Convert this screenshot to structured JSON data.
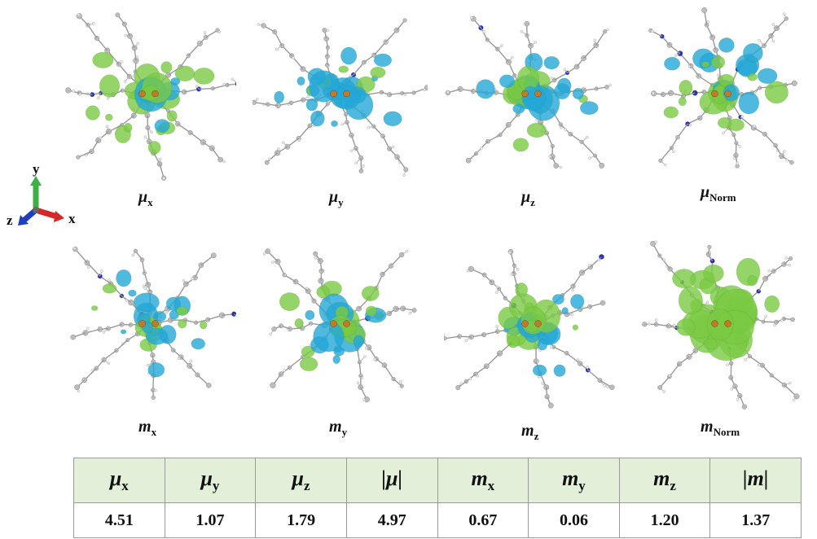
{
  "axes_indicator": {
    "y": "y",
    "x": "x",
    "z": "z"
  },
  "colors": {
    "green": "#7ac943",
    "cyan": "#23a8d8",
    "atom_gray": "#bdbdbd",
    "nitrogen": "#2b2fb8",
    "header_bg": "#e3efd9"
  },
  "panels": [
    {
      "symbol": "μ",
      "sub": "x"
    },
    {
      "symbol": "μ",
      "sub": "y"
    },
    {
      "symbol": "μ",
      "sub": "z"
    },
    {
      "symbol": "μ",
      "sub": "Norm"
    },
    {
      "symbol": "m",
      "sub": "x"
    },
    {
      "symbol": "m",
      "sub": "y"
    },
    {
      "symbol": "m",
      "sub": "z"
    },
    {
      "symbol": "m",
      "sub": "Norm"
    }
  ],
  "table": {
    "headers": [
      {
        "main": "μ",
        "sub": "x"
      },
      {
        "main": "μ",
        "sub": "y"
      },
      {
        "main": "μ",
        "sub": "z"
      },
      {
        "main": "|μ|",
        "sub": ""
      },
      {
        "main": "m",
        "sub": "x"
      },
      {
        "main": "m",
        "sub": "y"
      },
      {
        "main": "m",
        "sub": "z"
      },
      {
        "main": "|m|",
        "sub": ""
      }
    ],
    "values": [
      "4.51",
      "1.07",
      "1.79",
      "4.97",
      "0.67",
      "0.06",
      "1.20",
      "1.37"
    ]
  }
}
